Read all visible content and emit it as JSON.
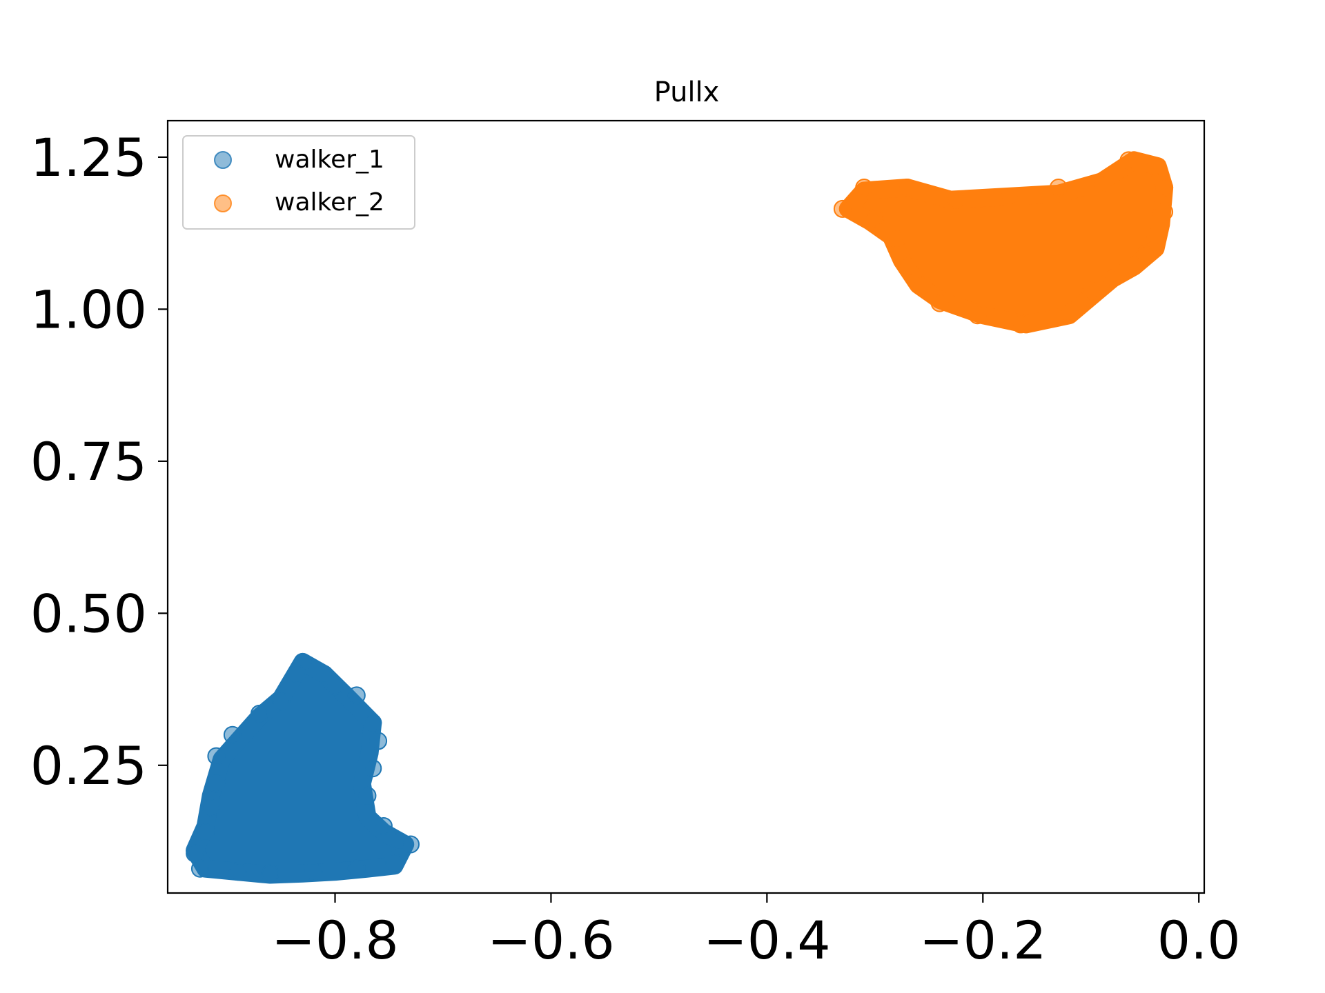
{
  "chart_data": {
    "type": "scatter",
    "title": "Pullx",
    "xlabel": "",
    "ylabel": "",
    "xlim": [
      -0.955,
      0.005
    ],
    "ylim": [
      0.04,
      1.31
    ],
    "x_ticks": [
      -0.8,
      -0.6,
      -0.4,
      -0.2,
      0.0
    ],
    "x_tick_labels": [
      "−0.8",
      "−0.6",
      "−0.4",
      "−0.2",
      "0.0"
    ],
    "y_ticks": [
      0.25,
      0.5,
      0.75,
      1.0,
      1.25
    ],
    "y_tick_labels": [
      "0.25",
      "0.50",
      "0.75",
      "1.00",
      "1.25"
    ],
    "grid": false,
    "legend_position": "top-left",
    "series": [
      {
        "name": "walker_1",
        "color": "#1f77b4",
        "marker_alpha": 0.5,
        "outline": [
          [
            -0.92,
            0.08
          ],
          [
            -0.89,
            0.075
          ],
          [
            -0.86,
            0.07
          ],
          [
            -0.83,
            0.072
          ],
          [
            -0.8,
            0.075
          ],
          [
            -0.77,
            0.08
          ],
          [
            -0.745,
            0.085
          ],
          [
            -0.735,
            0.12
          ],
          [
            -0.755,
            0.14
          ],
          [
            -0.77,
            0.165
          ],
          [
            -0.775,
            0.22
          ],
          [
            -0.768,
            0.27
          ],
          [
            -0.765,
            0.32
          ],
          [
            -0.79,
            0.365
          ],
          [
            -0.81,
            0.4
          ],
          [
            -0.83,
            0.42
          ],
          [
            -0.85,
            0.36
          ],
          [
            -0.87,
            0.33
          ],
          [
            -0.89,
            0.29
          ],
          [
            -0.905,
            0.26
          ],
          [
            -0.915,
            0.2
          ],
          [
            -0.92,
            0.15
          ],
          [
            -0.93,
            0.11
          ]
        ],
        "edge_points": [
          [
            -0.83,
            0.42
          ],
          [
            -0.835,
            0.4
          ],
          [
            -0.81,
            0.4
          ],
          [
            -0.8,
            0.38
          ],
          [
            -0.78,
            0.365
          ],
          [
            -0.765,
            0.32
          ],
          [
            -0.76,
            0.29
          ],
          [
            -0.765,
            0.245
          ],
          [
            -0.77,
            0.2
          ],
          [
            -0.755,
            0.15
          ],
          [
            -0.74,
            0.125
          ],
          [
            -0.73,
            0.12
          ],
          [
            -0.745,
            0.09
          ],
          [
            -0.78,
            0.08
          ],
          [
            -0.82,
            0.075
          ],
          [
            -0.86,
            0.072
          ],
          [
            -0.89,
            0.075
          ],
          [
            -0.925,
            0.08
          ],
          [
            -0.93,
            0.105
          ],
          [
            -0.92,
            0.14
          ],
          [
            -0.915,
            0.18
          ],
          [
            -0.91,
            0.22
          ],
          [
            -0.91,
            0.265
          ],
          [
            -0.895,
            0.3
          ],
          [
            -0.87,
            0.335
          ],
          [
            -0.85,
            0.355
          ]
        ]
      },
      {
        "name": "walker_2",
        "color": "#ff7f0e",
        "marker_alpha": 0.5,
        "outline": [
          [
            -0.325,
            1.165
          ],
          [
            -0.31,
            1.195
          ],
          [
            -0.27,
            1.2
          ],
          [
            -0.23,
            1.18
          ],
          [
            -0.18,
            1.185
          ],
          [
            -0.13,
            1.19
          ],
          [
            -0.09,
            1.21
          ],
          [
            -0.06,
            1.245
          ],
          [
            -0.038,
            1.235
          ],
          [
            -0.032,
            1.2
          ],
          [
            -0.035,
            1.14
          ],
          [
            -0.04,
            1.1
          ],
          [
            -0.06,
            1.07
          ],
          [
            -0.08,
            1.05
          ],
          [
            -0.1,
            1.02
          ],
          [
            -0.12,
            0.99
          ],
          [
            -0.16,
            0.975
          ],
          [
            -0.2,
            0.99
          ],
          [
            -0.24,
            1.015
          ],
          [
            -0.26,
            1.04
          ],
          [
            -0.275,
            1.08
          ],
          [
            -0.285,
            1.12
          ],
          [
            -0.305,
            1.145
          ]
        ],
        "edge_points": [
          [
            -0.33,
            1.165
          ],
          [
            -0.31,
            1.2
          ],
          [
            -0.27,
            1.2
          ],
          [
            -0.225,
            1.18
          ],
          [
            -0.175,
            1.185
          ],
          [
            -0.13,
            1.2
          ],
          [
            -0.09,
            1.205
          ],
          [
            -0.065,
            1.245
          ],
          [
            -0.04,
            1.235
          ],
          [
            -0.032,
            1.2
          ],
          [
            -0.032,
            1.16
          ],
          [
            -0.04,
            1.12
          ],
          [
            -0.05,
            1.09
          ],
          [
            -0.08,
            1.05
          ],
          [
            -0.1,
            1.03
          ],
          [
            -0.12,
            0.995
          ],
          [
            -0.165,
            0.975
          ],
          [
            -0.205,
            0.99
          ],
          [
            -0.24,
            1.01
          ],
          [
            -0.255,
            1.04
          ],
          [
            -0.27,
            1.07
          ],
          [
            -0.28,
            1.115
          ],
          [
            -0.3,
            1.15
          ]
        ]
      }
    ]
  }
}
